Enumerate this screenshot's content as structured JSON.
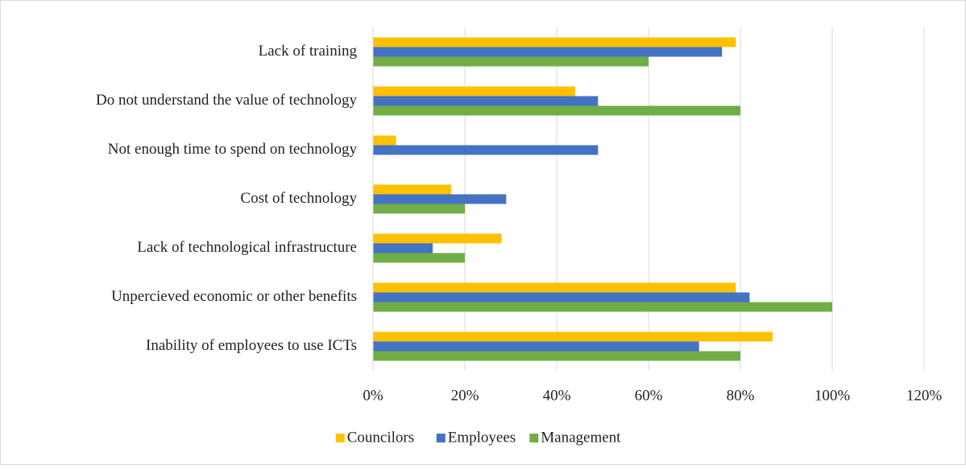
{
  "chart_data": {
    "type": "hbar",
    "categories": [
      "Lack of training",
      "Do not understand the value of technology",
      "Not enough time to spend on technology",
      "Cost of technology",
      "Lack of technological infrastructure",
      "Unpercieved economic or other benefits",
      "Inability of employees to use ICTs"
    ],
    "series": [
      {
        "name": "Councilors",
        "color": "#FFC000",
        "values": [
          79,
          44,
          5,
          17,
          28,
          79,
          87
        ]
      },
      {
        "name": "Employees",
        "color": "#4472C4",
        "values": [
          76,
          49,
          49,
          29,
          13,
          82,
          71
        ]
      },
      {
        "name": "Management",
        "color": "#70AD47",
        "values": [
          60,
          80,
          0,
          20,
          20,
          100,
          80
        ]
      }
    ],
    "xlim": [
      0,
      120
    ],
    "xticks": [
      {
        "value": 0,
        "label": "0%"
      },
      {
        "value": 20,
        "label": "20%"
      },
      {
        "value": 40,
        "label": "40%"
      },
      {
        "value": 60,
        "label": "60%"
      },
      {
        "value": 80,
        "label": "80%"
      },
      {
        "value": 100,
        "label": "100%"
      },
      {
        "value": 120,
        "label": "120%"
      }
    ],
    "grid": true,
    "legend": "bottom"
  }
}
